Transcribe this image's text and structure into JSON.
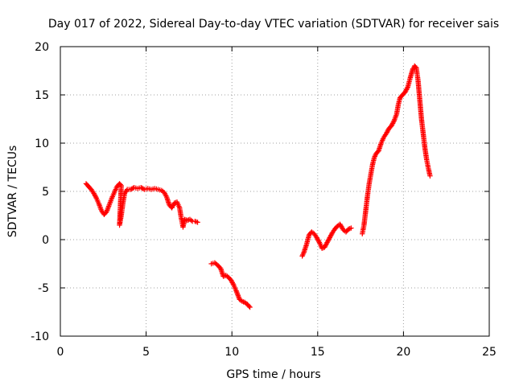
{
  "chart_data": {
    "type": "scatter",
    "title": "Day 017 of 2022, Sidereal Day-to-day VTEC variation (SDTVAR) for receiver sais",
    "xlabel": "GPS time / hours",
    "ylabel": "SDTVAR / TECUs",
    "xlim": [
      0,
      25
    ],
    "ylim": [
      -10,
      20
    ],
    "xticks": [
      0,
      5,
      10,
      15,
      20,
      25
    ],
    "yticks": [
      -10,
      -5,
      0,
      5,
      10,
      15,
      20
    ],
    "xtick_labels": [
      "0",
      "5",
      "10",
      "15",
      "20",
      "25"
    ],
    "ytick_labels": [
      "-10",
      "-5",
      "0",
      "5",
      "10",
      "15",
      "20"
    ],
    "grid": true,
    "legend": "none",
    "marker": "plus",
    "color": "#ff0000",
    "series": [
      {
        "points": [
          [
            1.5,
            5.8
          ],
          [
            1.65,
            5.5
          ],
          [
            1.8,
            5.2
          ],
          [
            1.95,
            4.8
          ],
          [
            2.1,
            4.3
          ],
          [
            2.25,
            3.7
          ],
          [
            2.4,
            3.0
          ],
          [
            2.55,
            2.6
          ],
          [
            2.7,
            2.9
          ],
          [
            2.85,
            3.6
          ],
          [
            3.0,
            4.3
          ],
          [
            3.15,
            4.9
          ],
          [
            3.3,
            5.5
          ],
          [
            3.45,
            5.8
          ],
          [
            3.55,
            5.6
          ],
          [
            3.45,
            1.5
          ],
          [
            3.55,
            2.5
          ],
          [
            3.65,
            3.8
          ],
          [
            3.75,
            4.8
          ],
          [
            3.9,
            5.2
          ],
          [
            4.1,
            5.2
          ],
          [
            4.3,
            5.4
          ],
          [
            4.5,
            5.3
          ],
          [
            4.7,
            5.4
          ],
          [
            4.9,
            5.2
          ],
          [
            5.1,
            5.3
          ],
          [
            5.3,
            5.2
          ],
          [
            5.5,
            5.3
          ],
          [
            5.7,
            5.2
          ],
          [
            5.9,
            5.1
          ],
          [
            6.05,
            4.9
          ],
          [
            6.2,
            4.4
          ],
          [
            6.35,
            3.6
          ],
          [
            6.5,
            3.3
          ],
          [
            6.65,
            3.8
          ],
          [
            6.8,
            3.9
          ],
          [
            6.95,
            3.3
          ],
          [
            7.05,
            2.2
          ],
          [
            7.15,
            1.3
          ],
          [
            7.25,
            2.1
          ],
          [
            7.4,
            2.0
          ],
          [
            7.55,
            2.1
          ],
          [
            7.7,
            1.9
          ],
          [
            7.85,
            1.9
          ],
          [
            8.0,
            1.8
          ]
        ]
      },
      {
        "points": [
          [
            8.8,
            -2.5
          ],
          [
            9.0,
            -2.4
          ],
          [
            9.2,
            -2.7
          ],
          [
            9.35,
            -3.0
          ],
          [
            9.5,
            -3.8
          ],
          [
            9.65,
            -3.7
          ],
          [
            9.8,
            -3.9
          ],
          [
            9.95,
            -4.2
          ],
          [
            10.1,
            -4.7
          ],
          [
            10.25,
            -5.3
          ],
          [
            10.45,
            -6.2
          ],
          [
            10.6,
            -6.4
          ],
          [
            10.75,
            -6.5
          ],
          [
            10.9,
            -6.7
          ],
          [
            11.05,
            -7.0
          ]
        ]
      },
      {
        "points": [
          [
            14.1,
            -1.7
          ],
          [
            14.2,
            -1.3
          ],
          [
            14.35,
            -0.5
          ],
          [
            14.5,
            0.5
          ],
          [
            14.65,
            0.8
          ],
          [
            14.8,
            0.6
          ],
          [
            14.95,
            0.2
          ],
          [
            15.1,
            -0.3
          ],
          [
            15.25,
            -0.9
          ],
          [
            15.4,
            -0.8
          ],
          [
            15.55,
            -0.3
          ],
          [
            15.7,
            0.2
          ],
          [
            15.85,
            0.7
          ],
          [
            16.0,
            1.1
          ],
          [
            16.15,
            1.4
          ],
          [
            16.3,
            1.6
          ],
          [
            16.5,
            1.0
          ],
          [
            16.65,
            0.8
          ],
          [
            16.8,
            1.1
          ],
          [
            16.95,
            1.2
          ]
        ]
      },
      {
        "points": [
          [
            17.6,
            0.6
          ],
          [
            17.7,
            1.5
          ],
          [
            17.8,
            3.0
          ],
          [
            17.9,
            4.5
          ],
          [
            18.0,
            5.8
          ],
          [
            18.1,
            6.8
          ],
          [
            18.2,
            7.8
          ],
          [
            18.3,
            8.5
          ],
          [
            18.4,
            8.9
          ],
          [
            18.55,
            9.2
          ],
          [
            18.7,
            10.0
          ],
          [
            18.85,
            10.6
          ],
          [
            19.0,
            11.0
          ],
          [
            19.15,
            11.5
          ],
          [
            19.3,
            11.8
          ],
          [
            19.45,
            12.3
          ],
          [
            19.6,
            13.0
          ],
          [
            19.7,
            14.0
          ],
          [
            19.8,
            14.7
          ],
          [
            19.95,
            15.0
          ],
          [
            20.1,
            15.3
          ],
          [
            20.25,
            15.8
          ],
          [
            20.4,
            16.8
          ],
          [
            20.55,
            17.7
          ],
          [
            20.65,
            18.0
          ],
          [
            20.75,
            17.8
          ],
          [
            20.85,
            16.5
          ],
          [
            20.95,
            14.5
          ],
          [
            21.05,
            12.5
          ],
          [
            21.15,
            11.0
          ],
          [
            21.25,
            9.5
          ],
          [
            21.35,
            8.3
          ],
          [
            21.45,
            7.4
          ],
          [
            21.55,
            6.6
          ]
        ]
      }
    ]
  }
}
